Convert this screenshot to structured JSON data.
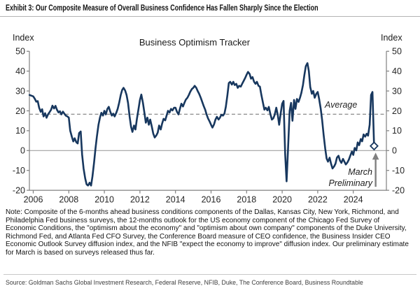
{
  "header": {
    "title": "Exhibit 3: Our Composite Measure of Overall Business Confidence Has Fallen Sharply Since the Election"
  },
  "chart": {
    "title": "Business Optimism Tracker",
    "axis_label_left": "Index",
    "axis_label_right": "Index",
    "average_label": "Average",
    "annotation_line1": "March",
    "annotation_line2": "Preliminary"
  },
  "chart_data": {
    "type": "line",
    "title": "Business Optimism Tracker",
    "ylabel": "Index",
    "ylim": [
      -20,
      50
    ],
    "yticks": [
      50,
      40,
      30,
      20,
      10,
      0,
      -10,
      -20
    ],
    "xticks": [
      2006,
      2008,
      2010,
      2012,
      2014,
      2016,
      2018,
      2020,
      2022,
      2024
    ],
    "x_range": [
      2005.79,
      2025.25
    ],
    "grid": "off",
    "average_value": 18.3,
    "line_color": "#17375e",
    "axis_color": "#808080",
    "zero_line_color": "#a0a0a0",
    "average_line_color": "#7f7f7f",
    "arrow_color": "#808080",
    "last_point": {
      "x": 2025.17,
      "y": 2.3,
      "marker": "open-diamond",
      "label": "March Preliminary"
    },
    "series": [
      {
        "name": "Business Optimism Tracker",
        "points": [
          [
            2005.79,
            28
          ],
          [
            2006.0,
            27.3
          ],
          [
            2006.08,
            26.2
          ],
          [
            2006.17,
            24.6
          ],
          [
            2006.25,
            24.9
          ],
          [
            2006.33,
            21.6
          ],
          [
            2006.42,
            19.5
          ],
          [
            2006.5,
            20.8
          ],
          [
            2006.58,
            17.2
          ],
          [
            2006.67,
            18.8
          ],
          [
            2006.75,
            16.5
          ],
          [
            2006.83,
            18.2
          ],
          [
            2006.92,
            19.4
          ],
          [
            2007.0,
            20.5
          ],
          [
            2007.08,
            22.6
          ],
          [
            2007.17,
            21.2
          ],
          [
            2007.25,
            22.5
          ],
          [
            2007.33,
            20.6
          ],
          [
            2007.42,
            19.2
          ],
          [
            2007.5,
            19.8
          ],
          [
            2007.58,
            18.2
          ],
          [
            2007.67,
            19.6
          ],
          [
            2007.75,
            18.6
          ],
          [
            2007.83,
            17.6
          ],
          [
            2007.92,
            17.2
          ],
          [
            2008.0,
            16.6
          ],
          [
            2008.08,
            10
          ],
          [
            2008.17,
            7
          ],
          [
            2008.25,
            4.6
          ],
          [
            2008.33,
            6.2
          ],
          [
            2008.42,
            4.2
          ],
          [
            2008.5,
            3.6
          ],
          [
            2008.58,
            8.8
          ],
          [
            2008.67,
            9.6
          ],
          [
            2008.75,
            -2
          ],
          [
            2008.83,
            -9
          ],
          [
            2008.92,
            -14
          ],
          [
            2009.0,
            -17
          ],
          [
            2009.08,
            -17.6
          ],
          [
            2009.17,
            -16.2
          ],
          [
            2009.25,
            -17.6
          ],
          [
            2009.33,
            -13
          ],
          [
            2009.42,
            -6
          ],
          [
            2009.5,
            1
          ],
          [
            2009.58,
            7
          ],
          [
            2009.67,
            13
          ],
          [
            2009.75,
            16.6
          ],
          [
            2009.83,
            19
          ],
          [
            2009.92,
            17.6
          ],
          [
            2010.0,
            20
          ],
          [
            2010.08,
            18.2
          ],
          [
            2010.17,
            21
          ],
          [
            2010.25,
            22
          ],
          [
            2010.33,
            19.6
          ],
          [
            2010.42,
            17.6
          ],
          [
            2010.5,
            18.6
          ],
          [
            2010.58,
            17.2
          ],
          [
            2010.67,
            19
          ],
          [
            2010.75,
            21
          ],
          [
            2010.83,
            24
          ],
          [
            2010.92,
            28
          ],
          [
            2011.0,
            30.5
          ],
          [
            2011.08,
            31.6
          ],
          [
            2011.17,
            30.2
          ],
          [
            2011.25,
            28
          ],
          [
            2011.33,
            24
          ],
          [
            2011.42,
            17
          ],
          [
            2011.5,
            12
          ],
          [
            2011.58,
            9.4
          ],
          [
            2011.67,
            12.6
          ],
          [
            2011.75,
            10.6
          ],
          [
            2011.83,
            16
          ],
          [
            2011.92,
            21
          ],
          [
            2012.0,
            25.5
          ],
          [
            2012.08,
            28.2
          ],
          [
            2012.17,
            24
          ],
          [
            2012.25,
            19
          ],
          [
            2012.33,
            14
          ],
          [
            2012.42,
            16.6
          ],
          [
            2012.5,
            13
          ],
          [
            2012.58,
            15.6
          ],
          [
            2012.67,
            12
          ],
          [
            2012.75,
            8.6
          ],
          [
            2012.83,
            6.6
          ],
          [
            2012.92,
            7.6
          ],
          [
            2013.0,
            9
          ],
          [
            2013.08,
            12.6
          ],
          [
            2013.17,
            10.6
          ],
          [
            2013.25,
            13.6
          ],
          [
            2013.33,
            16
          ],
          [
            2013.42,
            15.2
          ],
          [
            2013.5,
            17.6
          ],
          [
            2013.58,
            20
          ],
          [
            2013.67,
            19.2
          ],
          [
            2013.75,
            21
          ],
          [
            2013.83,
            20.2
          ],
          [
            2013.92,
            21.6
          ],
          [
            2014.0,
            21.6
          ],
          [
            2014.08,
            19.6
          ],
          [
            2014.17,
            18.2
          ],
          [
            2014.25,
            21
          ],
          [
            2014.33,
            23.6
          ],
          [
            2014.42,
            22.2
          ],
          [
            2014.5,
            24
          ],
          [
            2014.58,
            25.6
          ],
          [
            2014.67,
            26.6
          ],
          [
            2014.75,
            28
          ],
          [
            2014.83,
            29.6
          ],
          [
            2014.92,
            31
          ],
          [
            2015.0,
            31.6
          ],
          [
            2015.08,
            32.6
          ],
          [
            2015.17,
            31.6
          ],
          [
            2015.25,
            30
          ],
          [
            2015.33,
            28.6
          ],
          [
            2015.42,
            26.6
          ],
          [
            2015.5,
            24.6
          ],
          [
            2015.58,
            22.6
          ],
          [
            2015.67,
            20.6
          ],
          [
            2015.75,
            18.2
          ],
          [
            2015.83,
            16.2
          ],
          [
            2015.92,
            14.6
          ],
          [
            2016.0,
            13
          ],
          [
            2016.08,
            11.6
          ],
          [
            2016.17,
            13.2
          ],
          [
            2016.25,
            15.6
          ],
          [
            2016.33,
            17
          ],
          [
            2016.42,
            15.6
          ],
          [
            2016.5,
            16.6
          ],
          [
            2016.58,
            18
          ],
          [
            2016.67,
            17.6
          ],
          [
            2016.75,
            18.6
          ],
          [
            2016.83,
            22
          ],
          [
            2016.92,
            28
          ],
          [
            2017.0,
            34
          ],
          [
            2017.08,
            34.6
          ],
          [
            2017.17,
            33.2
          ],
          [
            2017.25,
            34.6
          ],
          [
            2017.33,
            33
          ],
          [
            2017.42,
            33.6
          ],
          [
            2017.5,
            31.6
          ],
          [
            2017.58,
            32.6
          ],
          [
            2017.67,
            32.2
          ],
          [
            2017.75,
            33.6
          ],
          [
            2017.83,
            35
          ],
          [
            2017.92,
            36.6
          ],
          [
            2018.0,
            38.2
          ],
          [
            2018.08,
            39.6
          ],
          [
            2018.17,
            38.6
          ],
          [
            2018.25,
            36.2
          ],
          [
            2018.33,
            37
          ],
          [
            2018.42,
            34.6
          ],
          [
            2018.5,
            33.6
          ],
          [
            2018.58,
            34.6
          ],
          [
            2018.67,
            32.6
          ],
          [
            2018.75,
            32.2
          ],
          [
            2018.83,
            28
          ],
          [
            2018.92,
            24
          ],
          [
            2019.0,
            20.6
          ],
          [
            2019.08,
            21.6
          ],
          [
            2019.17,
            20.2
          ],
          [
            2019.25,
            22
          ],
          [
            2019.33,
            18.6
          ],
          [
            2019.42,
            15.6
          ],
          [
            2019.5,
            16.2
          ],
          [
            2019.58,
            18
          ],
          [
            2019.67,
            21.6
          ],
          [
            2019.75,
            18
          ],
          [
            2019.83,
            13
          ],
          [
            2019.92,
            19
          ],
          [
            2020.0,
            23.6
          ],
          [
            2020.08,
            25
          ],
          [
            2020.17,
            -2
          ],
          [
            2020.25,
            -15.5
          ],
          [
            2020.33,
            1
          ],
          [
            2020.42,
            20
          ],
          [
            2020.5,
            24
          ],
          [
            2020.58,
            15
          ],
          [
            2020.67,
            25.5
          ],
          [
            2020.75,
            21
          ],
          [
            2020.83,
            26
          ],
          [
            2020.92,
            24.5
          ],
          [
            2021.0,
            26.5
          ],
          [
            2021.08,
            29
          ],
          [
            2021.17,
            33
          ],
          [
            2021.25,
            38
          ],
          [
            2021.33,
            42.5
          ],
          [
            2021.42,
            44
          ],
          [
            2021.5,
            40
          ],
          [
            2021.58,
            32
          ],
          [
            2021.67,
            28.6
          ],
          [
            2021.75,
            30
          ],
          [
            2021.83,
            26.6
          ],
          [
            2021.92,
            28.6
          ],
          [
            2022.0,
            29.5
          ],
          [
            2022.08,
            26
          ],
          [
            2022.17,
            21
          ],
          [
            2022.25,
            15
          ],
          [
            2022.33,
            8
          ],
          [
            2022.42,
            1
          ],
          [
            2022.5,
            -4
          ],
          [
            2022.58,
            -5.6
          ],
          [
            2022.67,
            -3.6
          ],
          [
            2022.75,
            -6.6
          ],
          [
            2022.83,
            -9
          ],
          [
            2022.92,
            -8
          ],
          [
            2023.0,
            -6.6
          ],
          [
            2023.08,
            -3.6
          ],
          [
            2023.17,
            -2.6
          ],
          [
            2023.25,
            -5
          ],
          [
            2023.33,
            -6.2
          ],
          [
            2023.42,
            -4.2
          ],
          [
            2023.5,
            -5.6
          ],
          [
            2023.58,
            -7
          ],
          [
            2023.67,
            -6
          ],
          [
            2023.75,
            -4.6
          ],
          [
            2023.83,
            -2.6
          ],
          [
            2023.92,
            -0.5
          ],
          [
            2024.0,
            -2.2
          ],
          [
            2024.08,
            1.3
          ],
          [
            2024.17,
            0.1
          ],
          [
            2024.25,
            4.1
          ],
          [
            2024.33,
            2.7
          ],
          [
            2024.42,
            5.8
          ],
          [
            2024.5,
            4.7
          ],
          [
            2024.58,
            8.1
          ],
          [
            2024.67,
            7
          ],
          [
            2024.75,
            8.5
          ],
          [
            2024.83,
            7.5
          ],
          [
            2024.92,
            13
          ],
          [
            2025.0,
            28
          ],
          [
            2025.08,
            29.5
          ],
          [
            2025.17,
            2.3
          ]
        ]
      }
    ]
  },
  "note": "Note: Composite of the 6-months ahead business conditions components of the Dallas, Kansas City, New York, Richmond, and Philadelphia Fed business surveys, the 12-months outlook for the US economy component of the Chicago Fed Survey of Economic Conditions, the \"optimism about the economy\" and \"optimism about own company\" components of the Duke University, Richmond Fed, and Atlanta Fed CFO Survey, the Conference Board measure of CEO confidence, the Business Insider CEO Economic Outlook Survey diffusion index, and the NFIB \"expect the economy to improve\" diffusion index. Our preliminary estimate for March is based on surveys released thus far.",
  "source": "Source: Goldman Sachs Global Investment Research, Federal Reserve, NFIB, Duke, The Conference Board, Business Roundtable"
}
